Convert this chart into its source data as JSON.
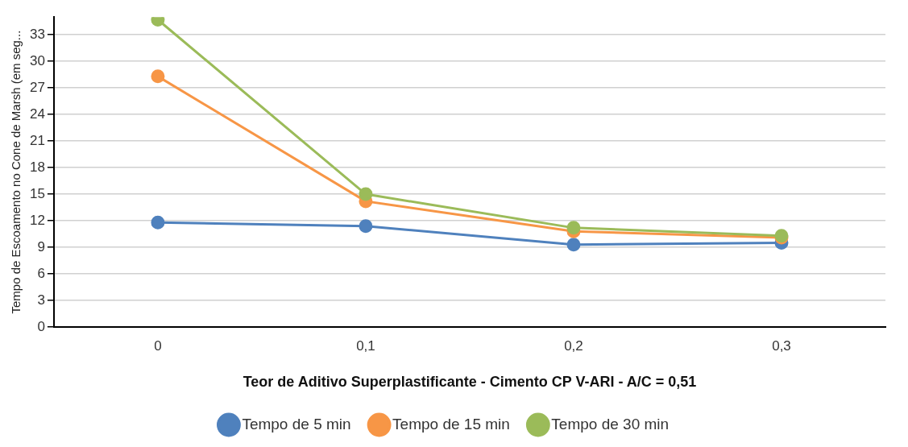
{
  "chart_data": {
    "type": "line",
    "xlabel": "Teor de Aditivo Superplastificante - Cimento CP V-ARI - A/C = 0,51",
    "ylabel": "Tempo de Escoamento no Cone de Marsh (em seg...",
    "categories": [
      "0",
      "0,1",
      "0,2",
      "0,3"
    ],
    "series": [
      {
        "name": "Tempo de 5 min",
        "color": "#4f81bd",
        "values": [
          11.8,
          11.4,
          9.3,
          9.5
        ]
      },
      {
        "name": "Tempo de 15 min",
        "color": "#f79646",
        "values": [
          28.3,
          14.2,
          10.8,
          10.1
        ]
      },
      {
        "name": "Tempo de 30 min",
        "color": "#9bbb59",
        "values": [
          34.7,
          15.0,
          11.2,
          10.3
        ]
      }
    ],
    "ylim": [
      0,
      35
    ],
    "yticks": [
      0,
      3,
      6,
      9,
      12,
      15,
      18,
      21,
      24,
      27,
      30,
      33
    ],
    "grid": "y",
    "legend": "bottom",
    "marker": "circle",
    "line_style": "solid"
  }
}
